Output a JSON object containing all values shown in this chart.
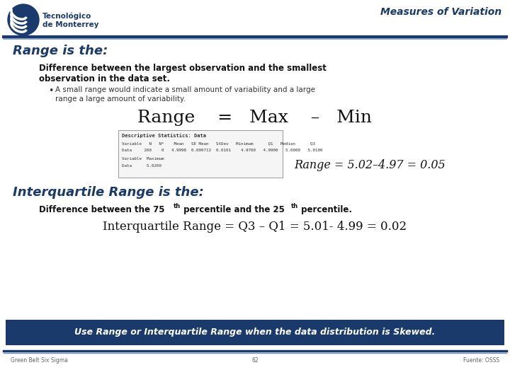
{
  "title": "Measures of Variation",
  "bg_color": "#ffffff",
  "dark_blue": "#1a3a6b",
  "section1_heading": "Range is the:",
  "section1_body1": "Difference between the largest observation and the smallest",
  "section1_body2": "observation in the data set.",
  "section1_bullet": "A small range would indicate a small amount of variability and a large\nrange a large amount of variability.",
  "range_formula": "Range    =   Max    –   Min",
  "stats_title": "Descriptive Statistics: Data",
  "stats_line1": "Variable   N   N*    Mean   SE Mean   StDev   Minimum      Q1   Median      Q3",
  "stats_line2": "Data     200    0   4.9998  0.000712  0.0101    4.9700   4.9900   5.0000   5.0100",
  "stats_line3": "Variable  Maximum",
  "stats_line4": "Data      5.0200",
  "range_example": "Range = 5.02–4.97 = 0.05",
  "section2_heading": "Interquartile Range is the:",
  "iqr_formula": "Interquartile Range = Q3 – Q1 = 5.01- 4.99 = 0.02",
  "footer_text": "Use Range or Interquartile Range when the data distribution is Skewed.",
  "footer_bg": "#1a3a6b",
  "footer_text_color": "#ffffff",
  "bottom_left": "Green Belt Six Sigma",
  "bottom_center": "62",
  "bottom_right": "Fuente: OSSS"
}
